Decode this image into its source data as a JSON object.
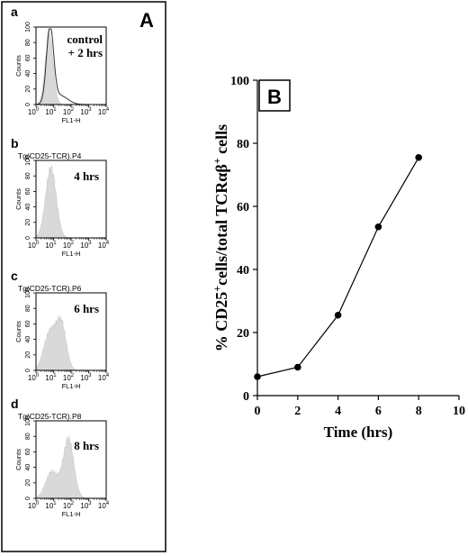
{
  "panel_a": {
    "label": "A",
    "histograms": [
      {
        "letter": "a",
        "title": "",
        "time_label_lines": [
          "control",
          "+ 2 hrs"
        ],
        "ylabel": "Counts",
        "yticks": [
          "0",
          "20",
          "40",
          "60",
          "80",
          "100"
        ],
        "xlabel": "FL1-H",
        "xtick_base": "10",
        "xtick_exps": [
          "0",
          "1",
          "2",
          "3",
          "4"
        ],
        "has_control_overlay": true
      },
      {
        "letter": "b",
        "title": "Tg(CD25-TCR).P4",
        "time_label_lines": [
          "4 hrs"
        ],
        "ylabel": "Counts",
        "yticks": [
          "0",
          "20",
          "40",
          "60",
          "80",
          "100"
        ],
        "xlabel": "FL1-H",
        "xtick_base": "10",
        "xtick_exps": [
          "0",
          "1",
          "2",
          "3",
          "4"
        ],
        "has_control_overlay": false
      },
      {
        "letter": "c",
        "title": "Tg(CD25-TCR).P6",
        "time_label_lines": [
          "6 hrs"
        ],
        "ylabel": "Counts",
        "yticks": [
          "0",
          "20",
          "40",
          "60",
          "80",
          "100"
        ],
        "xlabel": "FL1-H",
        "xtick_base": "10",
        "xtick_exps": [
          "0",
          "1",
          "2",
          "3",
          "4"
        ],
        "has_control_overlay": false
      },
      {
        "letter": "d",
        "title": "Tg(CD25-TCR).P8",
        "time_label_lines": [
          "8 hrs"
        ],
        "ylabel": "Counts",
        "yticks": [
          "0",
          "20",
          "40",
          "60",
          "80",
          "100"
        ],
        "xlabel": "FL1-H",
        "xtick_base": "10",
        "xtick_exps": [
          "0",
          "1",
          "2",
          "3",
          "4"
        ],
        "has_control_overlay": false
      }
    ]
  },
  "chart_data": {
    "type": "line",
    "panel_label": "B",
    "title": "",
    "xlabel": "Time (hrs)",
    "ylabel_parts": [
      "% CD25",
      "+",
      "cells/total TCRαβ",
      "+",
      " cells"
    ],
    "x": [
      0,
      2,
      4,
      6,
      8
    ],
    "series": [
      {
        "values": [
          6,
          9,
          25.5,
          53.5,
          75.5
        ]
      }
    ],
    "xlim": [
      0,
      10
    ],
    "ylim": [
      0,
      100
    ],
    "xticks": [
      0,
      2,
      4,
      6,
      8,
      10
    ],
    "yticks": [
      0,
      20,
      40,
      60,
      80,
      100
    ],
    "grid": false,
    "marker": "filled-circle",
    "color": "#000000"
  }
}
